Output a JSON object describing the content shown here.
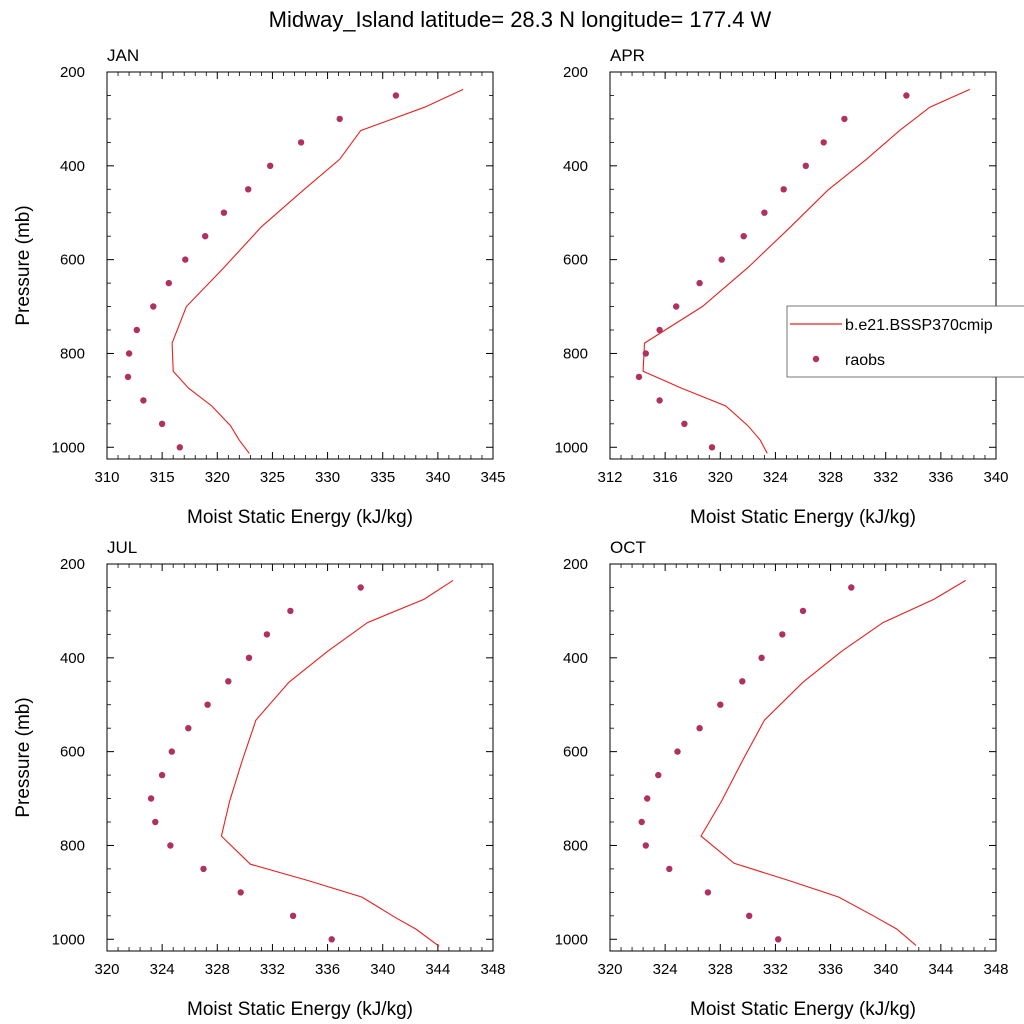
{
  "figure": {
    "title": "Midway_Island  latitude= 28.3 N longitude= 177.4 W"
  },
  "legend": {
    "model_label": "b.e21.BSSP370cmip",
    "obs_label": "raobs",
    "placement": "right of APR panel"
  },
  "colors": {
    "model_line": "#e8201e",
    "obs_marker": "#b03060",
    "axes": "#000000"
  },
  "chart_data": [
    {
      "type": "line",
      "title": "JAN",
      "xlabel": "Moist Static Energy (kJ/kg)",
      "ylabel": "Pressure (mb)",
      "xlim": [
        310,
        345
      ],
      "ylim": [
        1025,
        200
      ],
      "x_ticks": [
        310,
        315,
        320,
        325,
        330,
        335,
        340,
        345
      ],
      "y_ticks": [
        200,
        400,
        600,
        800,
        1000
      ],
      "series": [
        {
          "name": "b.e21.BSSP370cmip",
          "style": "line",
          "points": [
            [
              342.3,
              237
            ],
            [
              338.8,
              275
            ],
            [
              333.0,
              325
            ],
            [
              331.1,
              386
            ],
            [
              327.8,
              452
            ],
            [
              324.0,
              530
            ],
            [
              320.6,
              617
            ],
            [
              317.2,
              700
            ],
            [
              315.9,
              778
            ],
            [
              316.0,
              838
            ],
            [
              317.4,
              874
            ],
            [
              319.5,
              912
            ],
            [
              321.2,
              954
            ],
            [
              322.0,
              985
            ],
            [
              322.9,
              1013
            ]
          ]
        },
        {
          "name": "raobs",
          "style": "marker",
          "points": [
            [
              336.2,
              250
            ],
            [
              331.1,
              300
            ],
            [
              327.6,
              350
            ],
            [
              324.8,
              400
            ],
            [
              322.8,
              450
            ],
            [
              320.6,
              500
            ],
            [
              318.9,
              550
            ],
            [
              317.1,
              600
            ],
            [
              315.6,
              650
            ],
            [
              314.2,
              700
            ],
            [
              312.7,
              750
            ],
            [
              312.0,
              800
            ],
            [
              311.9,
              850
            ],
            [
              313.3,
              900
            ],
            [
              315.0,
              950
            ],
            [
              316.6,
              1000
            ]
          ]
        }
      ]
    },
    {
      "type": "line",
      "title": "APR",
      "xlabel": "Moist Static Energy (kJ/kg)",
      "ylabel": "",
      "xlim": [
        312,
        340
      ],
      "ylim": [
        1025,
        200
      ],
      "x_ticks": [
        312,
        316,
        320,
        324,
        328,
        332,
        336,
        340
      ],
      "y_ticks": [
        200,
        400,
        600,
        800,
        1000
      ],
      "series": [
        {
          "name": "b.e21.BSSP370cmip",
          "style": "line",
          "points": [
            [
              338.1,
              237
            ],
            [
              335.2,
              275
            ],
            [
              333.0,
              325
            ],
            [
              330.6,
              386
            ],
            [
              327.8,
              452
            ],
            [
              325.1,
              530
            ],
            [
              322.0,
              617
            ],
            [
              318.7,
              700
            ],
            [
              314.5,
              778
            ],
            [
              314.4,
              838
            ],
            [
              317.2,
              874
            ],
            [
              320.4,
              912
            ],
            [
              322.0,
              954
            ],
            [
              322.9,
              985
            ],
            [
              323.4,
              1013
            ]
          ]
        },
        {
          "name": "raobs",
          "style": "marker",
          "points": [
            [
              333.5,
              250
            ],
            [
              329.0,
              300
            ],
            [
              327.5,
              350
            ],
            [
              326.2,
              400
            ],
            [
              324.6,
              450
            ],
            [
              323.2,
              500
            ],
            [
              321.7,
              550
            ],
            [
              320.1,
              600
            ],
            [
              318.5,
              650
            ],
            [
              316.8,
              700
            ],
            [
              315.6,
              750
            ],
            [
              314.6,
              800
            ],
            [
              314.1,
              850
            ],
            [
              315.6,
              900
            ],
            [
              317.4,
              950
            ],
            [
              319.4,
              1000
            ]
          ]
        }
      ]
    },
    {
      "type": "line",
      "title": "JUL",
      "xlabel": "Moist Static Energy (kJ/kg)",
      "ylabel": "Pressure (mb)",
      "xlim": [
        320,
        348
      ],
      "ylim": [
        1025,
        200
      ],
      "x_ticks": [
        320,
        324,
        328,
        332,
        336,
        340,
        344,
        348
      ],
      "y_ticks": [
        200,
        400,
        600,
        800,
        1000
      ],
      "series": [
        {
          "name": "b.e21.BSSP370cmip",
          "style": "line",
          "points": [
            [
              345.1,
              235
            ],
            [
              343.0,
              275
            ],
            [
              338.9,
              325
            ],
            [
              336.0,
              386
            ],
            [
              333.2,
              452
            ],
            [
              330.8,
              533
            ],
            [
              329.8,
              620
            ],
            [
              328.9,
              705
            ],
            [
              328.3,
              780
            ],
            [
              330.4,
              840
            ],
            [
              334.6,
              875
            ],
            [
              338.5,
              910
            ],
            [
              341.0,
              955
            ],
            [
              342.4,
              978
            ],
            [
              344.1,
              1015
            ]
          ]
        },
        {
          "name": "raobs",
          "style": "marker",
          "points": [
            [
              338.4,
              250
            ],
            [
              333.3,
              300
            ],
            [
              331.6,
              350
            ],
            [
              330.3,
              400
            ],
            [
              328.8,
              450
            ],
            [
              327.3,
              500
            ],
            [
              325.9,
              550
            ],
            [
              324.7,
              600
            ],
            [
              324.0,
              650
            ],
            [
              323.2,
              700
            ],
            [
              323.5,
              750
            ],
            [
              324.6,
              800
            ],
            [
              327.0,
              850
            ],
            [
              329.7,
              900
            ],
            [
              333.5,
              950
            ],
            [
              336.3,
              1000
            ]
          ]
        }
      ]
    },
    {
      "type": "line",
      "title": "OCT",
      "xlabel": "Moist Static Energy (kJ/kg)",
      "ylabel": "",
      "xlim": [
        320,
        348
      ],
      "ylim": [
        1025,
        200
      ],
      "x_ticks": [
        320,
        324,
        328,
        332,
        336,
        340,
        344,
        348
      ],
      "y_ticks": [
        200,
        400,
        600,
        800,
        1000
      ],
      "series": [
        {
          "name": "b.e21.BSSP370cmip",
          "style": "line",
          "points": [
            [
              345.8,
              235
            ],
            [
              343.5,
              275
            ],
            [
              339.8,
              325
            ],
            [
              336.8,
              386
            ],
            [
              334.0,
              452
            ],
            [
              331.2,
              533
            ],
            [
              329.6,
              620
            ],
            [
              328.1,
              705
            ],
            [
              326.6,
              780
            ],
            [
              329.0,
              838
            ],
            [
              333.0,
              875
            ],
            [
              336.6,
              910
            ],
            [
              339.1,
              950
            ],
            [
              340.8,
              978
            ],
            [
              342.2,
              1013
            ]
          ]
        },
        {
          "name": "raobs",
          "style": "marker",
          "points": [
            [
              337.5,
              250
            ],
            [
              334.0,
              300
            ],
            [
              332.5,
              350
            ],
            [
              331.0,
              400
            ],
            [
              329.6,
              450
            ],
            [
              328.0,
              500
            ],
            [
              326.5,
              550
            ],
            [
              324.9,
              600
            ],
            [
              323.5,
              650
            ],
            [
              322.7,
              700
            ],
            [
              322.3,
              750
            ],
            [
              322.6,
              800
            ],
            [
              324.3,
              850
            ],
            [
              327.1,
              900
            ],
            [
              330.1,
              950
            ],
            [
              332.2,
              1000
            ]
          ]
        }
      ]
    }
  ]
}
